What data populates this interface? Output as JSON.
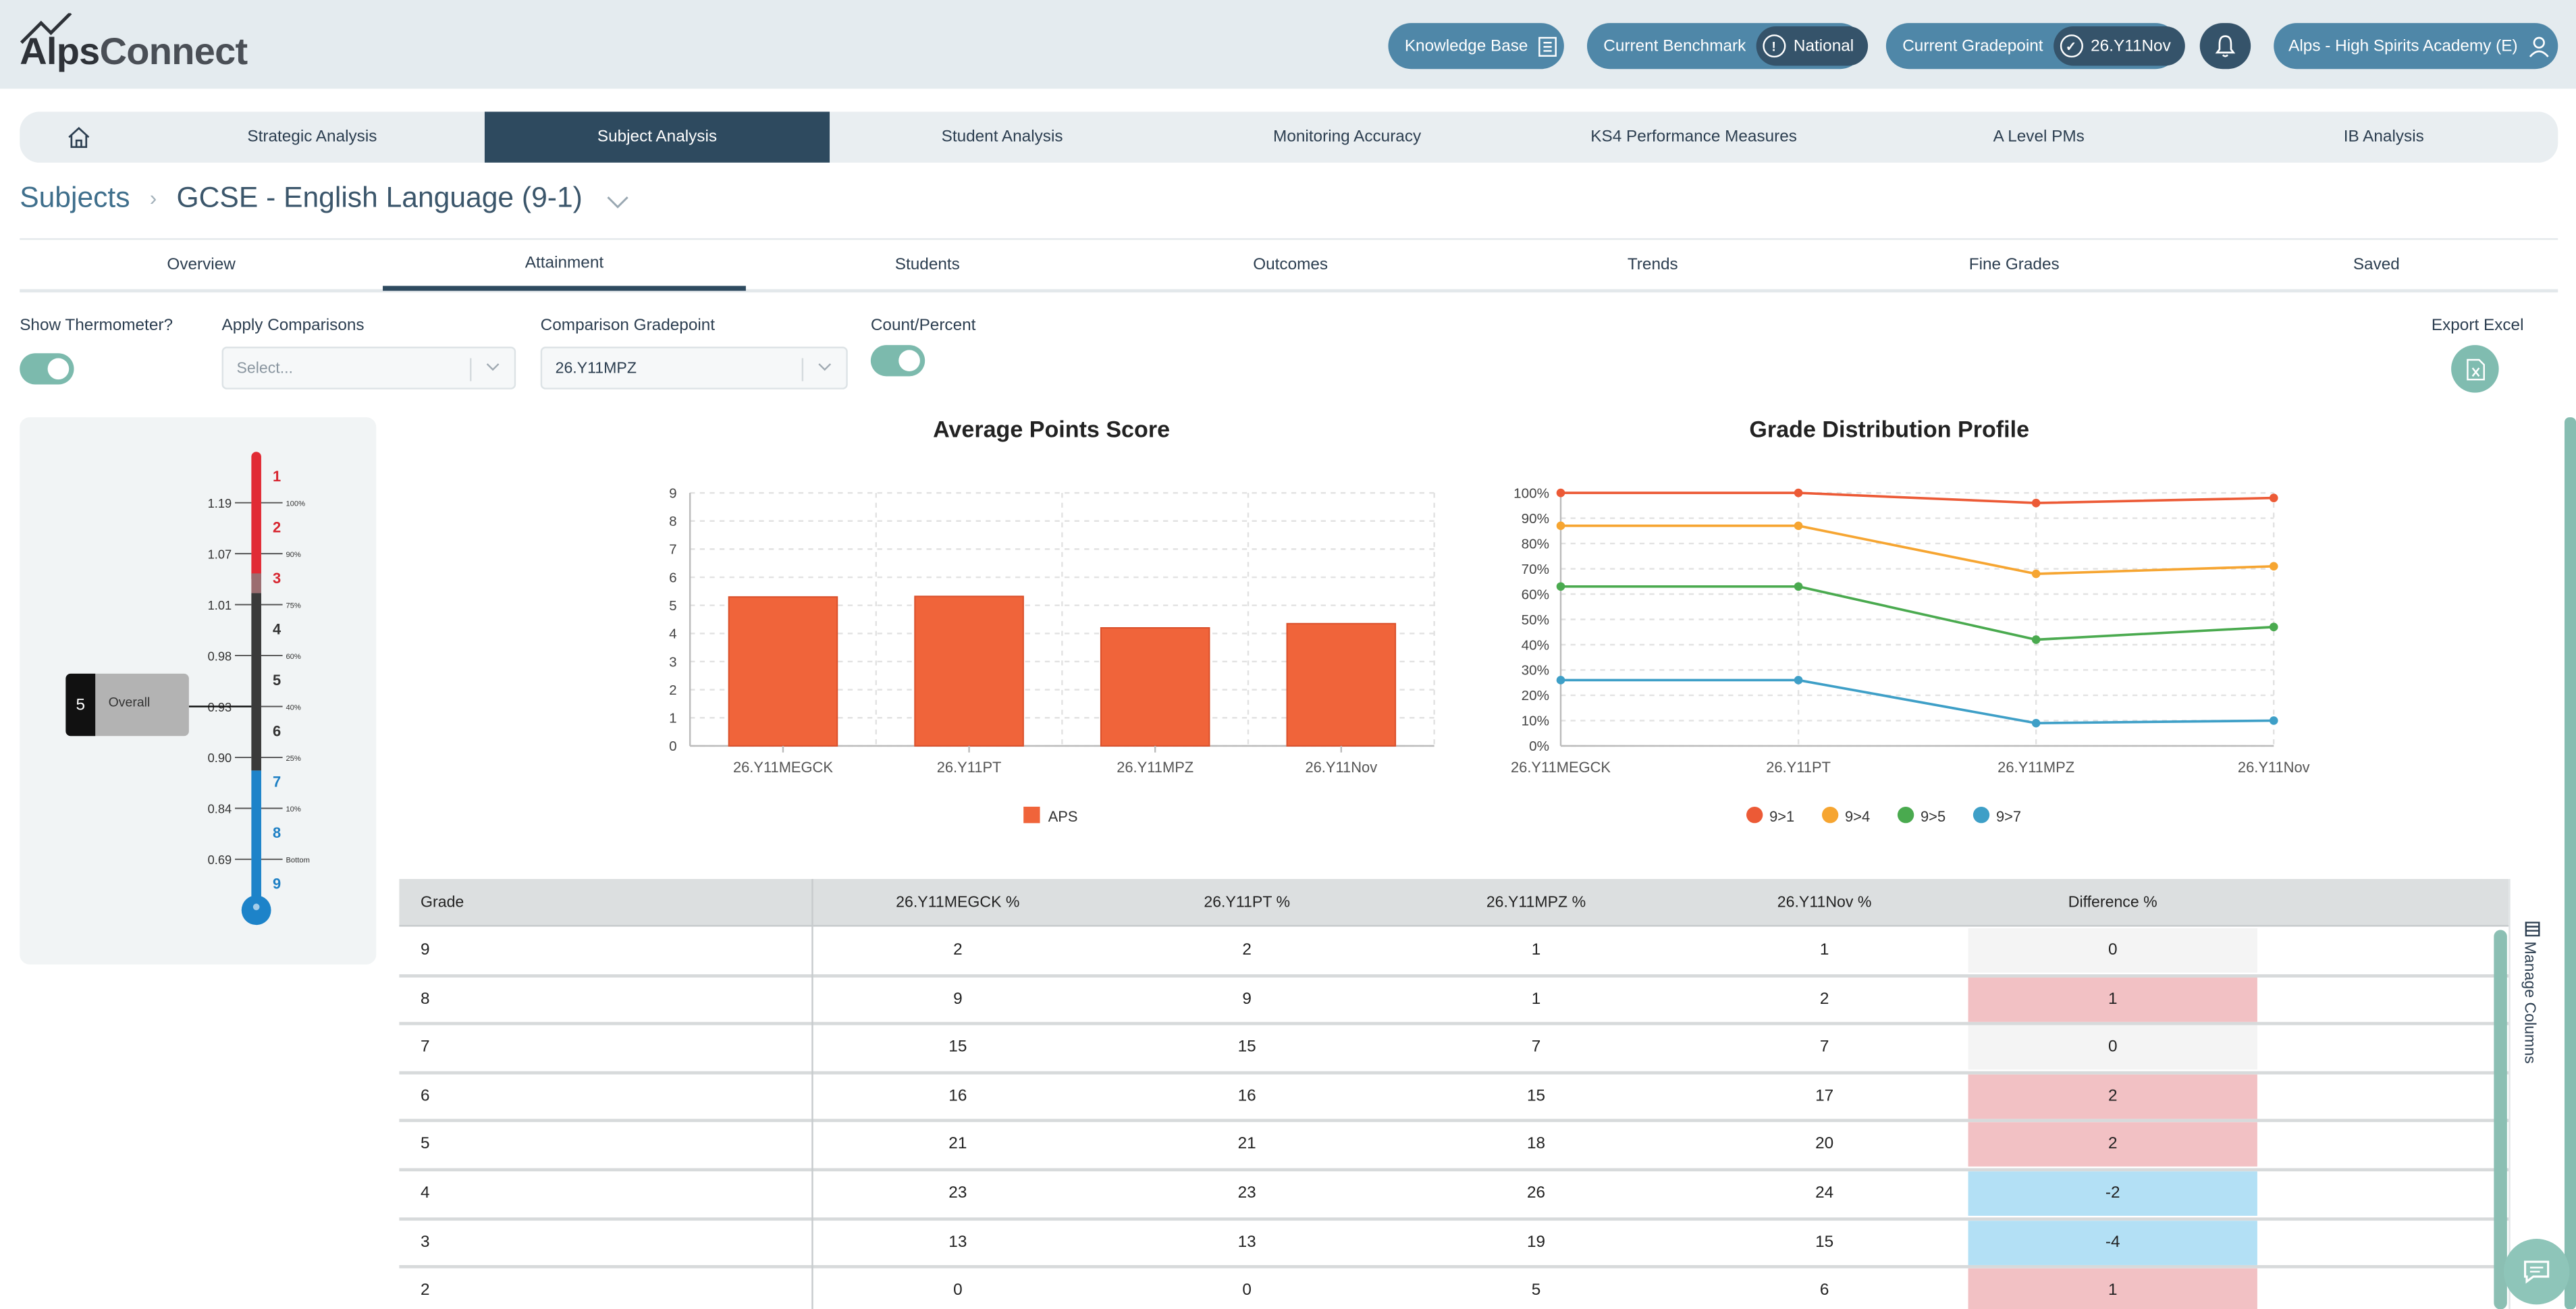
{
  "header": {
    "logo_part1": "Alps",
    "logo_part2": "Connect",
    "knowledge_base": "Knowledge Base",
    "benchmark_label": "Current Benchmark",
    "benchmark_value": "National",
    "gradepoint_label": "Current Gradepoint",
    "gradepoint_value": "26.Y11Nov",
    "school": "Alps - High Spirits Academy (E)"
  },
  "main_tabs": [
    "Strategic Analysis",
    "Subject Analysis",
    "Student Analysis",
    "Monitoring Accuracy",
    "KS4 Performance Measures",
    "A Level PMs",
    "IB Analysis"
  ],
  "breadcrumb": {
    "root": "Subjects",
    "current": "GCSE - English Language (9-1)"
  },
  "sub_tabs": [
    "Overview",
    "Attainment",
    "Students",
    "Outcomes",
    "Trends",
    "Fine Grades",
    "Saved"
  ],
  "controls": {
    "show_thermometer": "Show Thermometer?",
    "apply_comparisons": "Apply Comparisons",
    "apply_placeholder": "Select...",
    "comparison_gradepoint": "Comparison Gradepoint",
    "comparison_value": "26.Y11MPZ",
    "count_percent": "Count/Percent",
    "export_excel": "Export Excel"
  },
  "thermometer": {
    "scores": [
      "1.19",
      "1.07",
      "1.01",
      "0.98",
      "0.93",
      "0.90",
      "0.84",
      "0.69"
    ],
    "percent_labels": [
      "100%",
      "90%",
      "75%",
      "60%",
      "40%",
      "25%",
      "10%",
      "Bottom"
    ],
    "grades": [
      "1",
      "2",
      "3",
      "4",
      "5",
      "6",
      "7",
      "8",
      "9"
    ],
    "overall_grade": "5",
    "overall_label": "Overall"
  },
  "chart_data": [
    {
      "type": "bar",
      "title": "Average Points Score",
      "categories": [
        "26.Y11MEGCK",
        "26.Y11PT",
        "26.Y11MPZ",
        "26.Y11Nov"
      ],
      "series": [
        {
          "name": "APS",
          "values": [
            5.3,
            5.32,
            4.2,
            4.35
          ]
        }
      ],
      "ylim": [
        0,
        9
      ],
      "yticks": [
        "0",
        "1",
        "2",
        "3",
        "4",
        "5",
        "6",
        "7",
        "8",
        "9"
      ],
      "grid": true,
      "legend": "bottom",
      "color": "#f0643a"
    },
    {
      "type": "line",
      "title": "Grade Distribution Profile",
      "categories": [
        "26.Y11MEGCK",
        "26.Y11PT",
        "26.Y11MPZ",
        "26.Y11Nov"
      ],
      "series": [
        {
          "name": "9>1",
          "values": [
            100,
            100,
            96,
            98
          ],
          "color": "#ec5a36"
        },
        {
          "name": "9>4",
          "values": [
            87,
            87,
            68,
            71
          ],
          "color": "#f6a531"
        },
        {
          "name": "9>5",
          "values": [
            63,
            63,
            42,
            47
          ],
          "color": "#4aaa4f"
        },
        {
          "name": "9>7",
          "values": [
            26,
            26,
            9,
            10
          ],
          "color": "#3e9fc7"
        }
      ],
      "ylim": [
        0,
        100
      ],
      "yticks": [
        "0%",
        "10%",
        "20%",
        "30%",
        "40%",
        "50%",
        "60%",
        "70%",
        "80%",
        "90%",
        "100%"
      ],
      "grid": true,
      "legend": "bottom"
    }
  ],
  "table": {
    "headers": [
      "Grade",
      "26.Y11MEGCK %",
      "26.Y11PT %",
      "26.Y11MPZ %",
      "26.Y11Nov %",
      "Difference %"
    ],
    "rows": [
      [
        "9",
        "2",
        "2",
        "1",
        "1",
        "0"
      ],
      [
        "8",
        "9",
        "9",
        "1",
        "2",
        "1"
      ],
      [
        "7",
        "15",
        "15",
        "7",
        "7",
        "0"
      ],
      [
        "6",
        "16",
        "16",
        "15",
        "17",
        "2"
      ],
      [
        "5",
        "21",
        "21",
        "18",
        "20",
        "2"
      ],
      [
        "4",
        "23",
        "23",
        "26",
        "24",
        "-2"
      ],
      [
        "3",
        "13",
        "13",
        "19",
        "15",
        "-4"
      ],
      [
        "2",
        "0",
        "0",
        "5",
        "6",
        "1"
      ]
    ],
    "manage_columns": "Manage Columns"
  }
}
